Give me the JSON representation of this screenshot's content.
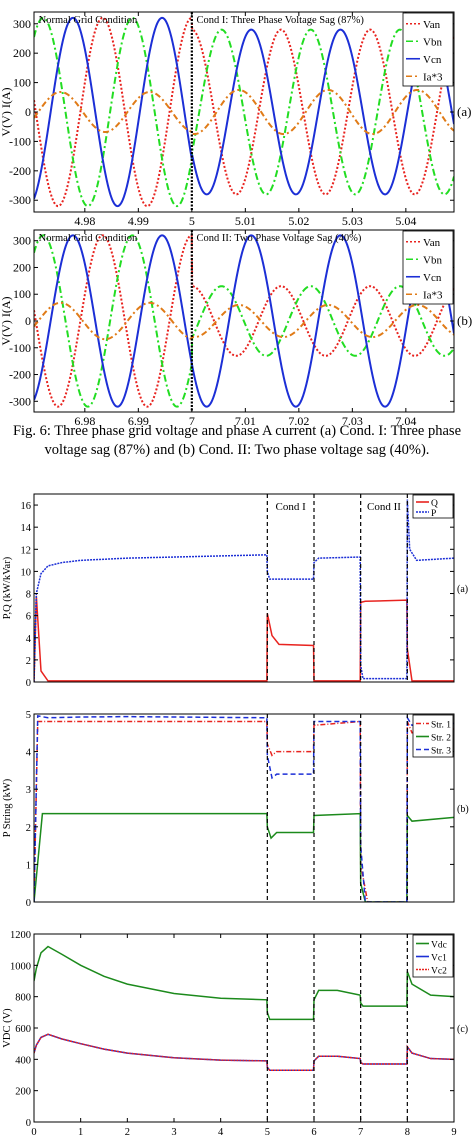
{
  "caption": "Fig. 6: Three phase grid voltage and phase A current (a) Cond. I: Three phase voltage sag (87%) and (b) Cond. II: Two phase voltage sag (40%).",
  "chart_data": [
    {
      "id": "a",
      "type": "line",
      "panel_label": "(a)",
      "ylabel": "V(V)  I(A)",
      "ylim": [
        -340,
        340
      ],
      "yticks": [
        -300,
        -200,
        -100,
        0,
        100,
        200,
        300
      ],
      "xlim": [
        4.9705,
        5.049
      ],
      "xticks": [
        4.98,
        4.99,
        5,
        5.01,
        5.02,
        5.03,
        5.04
      ],
      "annotations": [
        {
          "text": "Normal Grid Condition",
          "x": 4.971
        },
        {
          "text": "Cond I: Three Phase Voltage Sag (87%)",
          "x": 5.0005
        }
      ],
      "event_x": 5,
      "legend_position": "top-right",
      "grid": false,
      "frequency_hz": 60,
      "series": [
        {
          "name": "Van",
          "color": "#e8231f",
          "dash": "2,2",
          "amplitude_before": 320,
          "amplitude_after": 280,
          "phase_deg": 0
        },
        {
          "name": "Vbn",
          "color": "#22dd22",
          "dash": "7,3,2,3",
          "amplitude_before": 320,
          "amplitude_after": 280,
          "phase_deg": -120
        },
        {
          "name": "Vcn",
          "color": "#1c2fd6",
          "dash": "",
          "amplitude_before": 320,
          "amplitude_after": 280,
          "phase_deg": 120
        },
        {
          "name": "Ia*3",
          "color": "#e07b17",
          "dash": "6,3,2,3",
          "amplitude_before": 68,
          "amplitude_after": 75,
          "phase_deg": 170
        }
      ]
    },
    {
      "id": "b",
      "type": "line",
      "panel_label": "(b)",
      "ylabel": "V(V)  I(A)",
      "ylim": [
        -340,
        340
      ],
      "yticks": [
        -300,
        -200,
        -100,
        0,
        100,
        200,
        300
      ],
      "xlim": [
        6.9705,
        7.049
      ],
      "xticks": [
        6.98,
        6.99,
        7,
        7.01,
        7.02,
        7.03,
        7.04
      ],
      "annotations": [
        {
          "text": "Normal Grid Condition",
          "x": 6.971
        },
        {
          "text": "Cond II: Two Phase Voltage Sag (40%)",
          "x": 7.0005
        }
      ],
      "event_x": 7,
      "legend_position": "top-right",
      "grid": false,
      "frequency_hz": 60,
      "series": [
        {
          "name": "Van",
          "color": "#e8231f",
          "dash": "2,2",
          "amplitude_before": 320,
          "amplitude_after": 130,
          "phase_deg": 0
        },
        {
          "name": "Vbn",
          "color": "#22dd22",
          "dash": "7,3,2,3",
          "amplitude_before": 320,
          "amplitude_after": 130,
          "phase_deg": -120
        },
        {
          "name": "Vcn",
          "color": "#1c2fd6",
          "dash": "",
          "amplitude_before": 320,
          "amplitude_after": 320,
          "phase_deg": 120
        },
        {
          "name": "Ia*3",
          "color": "#e07b17",
          "dash": "6,3,2,3",
          "amplitude_before": 68,
          "amplitude_after": 60,
          "phase_deg": 170
        }
      ]
    },
    {
      "id": "c1",
      "type": "line",
      "panel_label": "(a)",
      "ylabel": "P,Q (kW/kVar)",
      "ylim": [
        0,
        17
      ],
      "yticks": [
        0,
        2,
        4,
        6,
        8,
        10,
        12,
        14,
        16
      ],
      "xlim": [
        0,
        9
      ],
      "annotations": [
        {
          "text": "Cond I",
          "x": 5.5
        },
        {
          "text": "Cond II",
          "x": 7.5
        }
      ],
      "event_lines": [
        5,
        6,
        7,
        8
      ],
      "legend_position": "top-right",
      "grid": false,
      "series": [
        {
          "name": "Q",
          "color": "#e8231f",
          "dash": "",
          "points": [
            [
              0,
              0
            ],
            [
              0.05,
              7.8
            ],
            [
              0.15,
              1
            ],
            [
              0.3,
              0.1
            ],
            [
              4.99,
              0.1
            ],
            [
              5.0,
              6.2
            ],
            [
              5.1,
              4.2
            ],
            [
              5.25,
              3.4
            ],
            [
              5.99,
              3.3
            ],
            [
              6.0,
              0.1
            ],
            [
              6.99,
              0.1
            ],
            [
              7.0,
              7.2
            ],
            [
              7.1,
              7.3
            ],
            [
              7.99,
              7.4
            ],
            [
              8.0,
              3
            ],
            [
              8.1,
              0.1
            ],
            [
              9,
              0.1
            ]
          ]
        },
        {
          "name": "P",
          "color": "#1c2fd6",
          "dash": "2,1",
          "points": [
            [
              0,
              0
            ],
            [
              0.05,
              8
            ],
            [
              0.15,
              9.8
            ],
            [
              0.3,
              10.5
            ],
            [
              0.6,
              10.8
            ],
            [
              1,
              11
            ],
            [
              2,
              11.2
            ],
            [
              3,
              11.3
            ],
            [
              4,
              11.4
            ],
            [
              4.99,
              11.5
            ],
            [
              5.0,
              10
            ],
            [
              5.05,
              9.3
            ],
            [
              5.99,
              9.3
            ],
            [
              6.0,
              10.8
            ],
            [
              6.1,
              11.2
            ],
            [
              6.99,
              11.3
            ],
            [
              7.0,
              1.5
            ],
            [
              7.05,
              0.3
            ],
            [
              7.99,
              0.3
            ],
            [
              8.0,
              16.5
            ],
            [
              8.05,
              12
            ],
            [
              8.2,
              11
            ],
            [
              9,
              11.2
            ]
          ]
        }
      ]
    },
    {
      "id": "c2",
      "type": "line",
      "panel_label": "(b)",
      "ylabel": "P String (kW)",
      "ylim": [
        0,
        5
      ],
      "yticks": [
        0,
        1,
        2,
        3,
        4,
        5
      ],
      "xlim": [
        0,
        9
      ],
      "event_lines": [
        5,
        6,
        7,
        8
      ],
      "legend_position": "top-right",
      "grid": false,
      "series": [
        {
          "name": "Str. 1",
          "color": "#e8231f",
          "dash": "5,2,1,2",
          "points": [
            [
              0,
              0
            ],
            [
              0.08,
              4.8
            ],
            [
              4.99,
              4.8
            ],
            [
              5.0,
              4.2
            ],
            [
              5.1,
              3.9
            ],
            [
              5.2,
              4.0
            ],
            [
              5.99,
              4.0
            ],
            [
              6.0,
              4.7
            ],
            [
              6.99,
              4.8
            ],
            [
              7.0,
              1
            ],
            [
              7.15,
              0
            ],
            [
              7.99,
              0
            ],
            [
              8.0,
              4.8
            ],
            [
              8.1,
              4.5
            ],
            [
              9,
              4.6
            ]
          ]
        },
        {
          "name": "Str. 2",
          "color": "#1c8a1c",
          "dash": "",
          "points": [
            [
              0,
              0
            ],
            [
              0.18,
              2.35
            ],
            [
              4.99,
              2.35
            ],
            [
              5.0,
              2.0
            ],
            [
              5.08,
              1.7
            ],
            [
              5.2,
              1.85
            ],
            [
              5.99,
              1.85
            ],
            [
              6.0,
              2.3
            ],
            [
              6.99,
              2.35
            ],
            [
              7.0,
              0.5
            ],
            [
              7.1,
              0
            ],
            [
              7.99,
              0
            ],
            [
              8.0,
              2.3
            ],
            [
              8.1,
              2.15
            ],
            [
              9,
              2.25
            ]
          ]
        },
        {
          "name": "Str. 3",
          "color": "#1c2fd6",
          "dash": "5,3",
          "points": [
            [
              0,
              0
            ],
            [
              0.08,
              4.95
            ],
            [
              0.3,
              4.9
            ],
            [
              1,
              4.92
            ],
            [
              2,
              4.93
            ],
            [
              3,
              4.92
            ],
            [
              4.99,
              4.9
            ],
            [
              5.0,
              3.9
            ],
            [
              5.1,
              3.3
            ],
            [
              5.2,
              3.4
            ],
            [
              5.99,
              3.4
            ],
            [
              6.0,
              4.8
            ],
            [
              6.99,
              4.8
            ],
            [
              7.0,
              1.5
            ],
            [
              7.1,
              0
            ],
            [
              7.99,
              0
            ],
            [
              8.0,
              4.9
            ],
            [
              8.1,
              4.7
            ],
            [
              9,
              4.75
            ]
          ]
        }
      ]
    },
    {
      "id": "c3",
      "type": "line",
      "panel_label": "(c)",
      "ylabel": "VDC (V)",
      "xlabel": "",
      "ylim": [
        0,
        1200
      ],
      "yticks": [
        0,
        200,
        400,
        600,
        800,
        1000,
        1200
      ],
      "xlim": [
        0,
        9
      ],
      "xticks": [
        0,
        1,
        2,
        3,
        4,
        5,
        6,
        7,
        8,
        9
      ],
      "event_lines": [
        5,
        6,
        7,
        8
      ],
      "legend_position": "top-right",
      "grid": false,
      "series": [
        {
          "name": "Vdc",
          "color": "#1c8a1c",
          "dash": "",
          "points": [
            [
              0,
              900
            ],
            [
              0.05,
              980
            ],
            [
              0.15,
              1080
            ],
            [
              0.3,
              1120
            ],
            [
              0.6,
              1070
            ],
            [
              1,
              1000
            ],
            [
              1.5,
              930
            ],
            [
              2,
              880
            ],
            [
              3,
              820
            ],
            [
              4,
              790
            ],
            [
              4.99,
              780
            ],
            [
              5.0,
              700
            ],
            [
              5.05,
              655
            ],
            [
              5.99,
              655
            ],
            [
              6.0,
              780
            ],
            [
              6.1,
              840
            ],
            [
              6.5,
              840
            ],
            [
              6.99,
              810
            ],
            [
              7.0,
              760
            ],
            [
              7.05,
              740
            ],
            [
              7.99,
              740
            ],
            [
              8.0,
              960
            ],
            [
              8.1,
              880
            ],
            [
              8.5,
              810
            ],
            [
              9,
              800
            ]
          ]
        },
        {
          "name": "Vc1",
          "color": "#1c2fd6",
          "dash": "",
          "points": [
            [
              0,
              440
            ],
            [
              0.05,
              490
            ],
            [
              0.15,
              540
            ],
            [
              0.3,
              560
            ],
            [
              0.6,
              530
            ],
            [
              1,
              500
            ],
            [
              1.5,
              465
            ],
            [
              2,
              440
            ],
            [
              3,
              410
            ],
            [
              4,
              395
            ],
            [
              4.99,
              390
            ],
            [
              5.0,
              350
            ],
            [
              5.05,
              330
            ],
            [
              5.99,
              330
            ],
            [
              6.0,
              390
            ],
            [
              6.1,
              420
            ],
            [
              6.5,
              420
            ],
            [
              6.99,
              405
            ],
            [
              7.0,
              380
            ],
            [
              7.05,
              370
            ],
            [
              7.99,
              370
            ],
            [
              8.0,
              480
            ],
            [
              8.1,
              440
            ],
            [
              8.5,
              405
            ],
            [
              9,
              400
            ]
          ]
        },
        {
          "name": "Vc2",
          "color": "#e8231f",
          "dash": "2,1",
          "points": [
            [
              0,
              440
            ],
            [
              0.05,
              490
            ],
            [
              0.15,
              540
            ],
            [
              0.3,
              560
            ],
            [
              0.6,
              530
            ],
            [
              1,
              500
            ],
            [
              1.5,
              465
            ],
            [
              2,
              440
            ],
            [
              3,
              410
            ],
            [
              4,
              395
            ],
            [
              4.99,
              390
            ],
            [
              5.0,
              350
            ],
            [
              5.05,
              330
            ],
            [
              5.99,
              330
            ],
            [
              6.0,
              390
            ],
            [
              6.1,
              420
            ],
            [
              6.5,
              420
            ],
            [
              6.99,
              405
            ],
            [
              7.0,
              380
            ],
            [
              7.05,
              370
            ],
            [
              7.99,
              370
            ],
            [
              8.0,
              480
            ],
            [
              8.1,
              440
            ],
            [
              8.5,
              405
            ],
            [
              9,
              400
            ]
          ]
        }
      ]
    }
  ]
}
